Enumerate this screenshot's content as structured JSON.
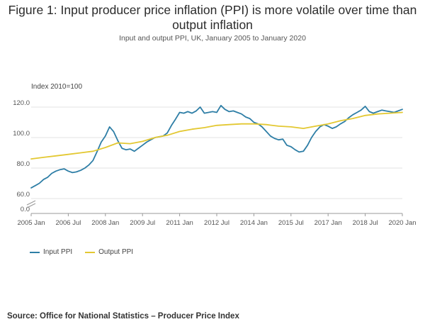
{
  "header": {
    "title": "Figure 1: Input producer price inflation (PPI) is more volatile over time than output inflation",
    "subtitle": "Input and output PPI, UK, January 2005 to January 2020"
  },
  "source": "Source: Office for National Statistics – Producer Price Index",
  "colors": {
    "input": "#2e7ea6",
    "output": "#e3c832",
    "grid": "#e3e3e3",
    "axis": "#999999"
  },
  "chart_data": {
    "type": "line",
    "title": "Figure 1: Input producer price inflation (PPI) is more volatile over time than output inflation",
    "subtitle": "Input and output PPI, UK, January 2005 to January 2020",
    "ylabel": "Index 2010=100",
    "xlabel": "",
    "xlim": [
      2005.0,
      2020.0
    ],
    "ylim": [
      0,
      130
    ],
    "axis_break": true,
    "yticks": [
      0,
      60,
      80,
      100,
      120
    ],
    "ytick_labels": [
      "0.0",
      "60.0",
      "80.0",
      "100.0",
      "120.0"
    ],
    "xticks": [
      2005.0,
      2006.5,
      2008.0,
      2009.5,
      2011.0,
      2012.5,
      2014.0,
      2015.5,
      2017.0,
      2018.5,
      2020.0
    ],
    "xtick_labels": [
      "2005 Jan",
      "2006 Jul",
      "2008 Jan",
      "2009 Jul",
      "2011 Jan",
      "2012 Jul",
      "2014 Jan",
      "2015 Jul",
      "2017 Jan",
      "2018 Jul",
      "2020 Jan"
    ],
    "grid": true,
    "legend_position": "bottom-left",
    "series": [
      {
        "name": "Input PPI",
        "color": "#2e7ea6",
        "x": [
          2005.0,
          2005.17,
          2005.33,
          2005.5,
          2005.67,
          2005.83,
          2006.0,
          2006.17,
          2006.33,
          2006.5,
          2006.67,
          2006.83,
          2007.0,
          2007.17,
          2007.33,
          2007.5,
          2007.67,
          2007.83,
          2008.0,
          2008.17,
          2008.33,
          2008.5,
          2008.67,
          2008.83,
          2009.0,
          2009.17,
          2009.33,
          2009.5,
          2009.67,
          2009.83,
          2010.0,
          2010.17,
          2010.33,
          2010.5,
          2010.67,
          2010.83,
          2011.0,
          2011.17,
          2011.33,
          2011.5,
          2011.67,
          2011.83,
          2012.0,
          2012.17,
          2012.33,
          2012.5,
          2012.67,
          2012.83,
          2013.0,
          2013.17,
          2013.33,
          2013.5,
          2013.67,
          2013.83,
          2014.0,
          2014.17,
          2014.33,
          2014.5,
          2014.67,
          2014.83,
          2015.0,
          2015.17,
          2015.33,
          2015.5,
          2015.67,
          2015.83,
          2016.0,
          2016.17,
          2016.33,
          2016.5,
          2016.67,
          2016.83,
          2017.0,
          2017.17,
          2017.33,
          2017.5,
          2017.67,
          2017.83,
          2018.0,
          2018.17,
          2018.33,
          2018.5,
          2018.67,
          2018.83,
          2019.0,
          2019.17,
          2019.33,
          2019.5,
          2019.67,
          2019.83,
          2020.0
        ],
        "values": [
          67.0,
          68.5,
          70.0,
          72.5,
          74.0,
          76.5,
          78.0,
          79.0,
          79.5,
          78.0,
          77.0,
          77.5,
          78.5,
          80.0,
          82.0,
          85.0,
          91.0,
          97.0,
          101.0,
          107.0,
          104.0,
          98.0,
          93.0,
          92.0,
          92.5,
          91.0,
          93.0,
          95.0,
          97.0,
          98.5,
          100.0,
          100.5,
          101.0,
          103.0,
          108.0,
          112.0,
          116.5,
          116.0,
          117.0,
          116.0,
          117.5,
          120.0,
          116.0,
          116.5,
          117.0,
          116.5,
          121.0,
          118.5,
          117.0,
          117.5,
          116.5,
          115.5,
          113.5,
          112.5,
          110.0,
          109.0,
          107.0,
          104.0,
          101.0,
          99.5,
          98.5,
          99.0,
          95.0,
          94.0,
          92.0,
          90.5,
          91.0,
          95.0,
          100.0,
          104.0,
          107.0,
          108.5,
          107.5,
          106.0,
          107.0,
          109.0,
          110.5,
          113.0,
          115.0,
          116.5,
          118.0,
          120.5,
          117.0,
          116.0,
          117.0,
          118.0,
          117.5,
          117.0,
          116.5,
          117.5,
          118.5
        ]
      },
      {
        "name": "Output PPI",
        "color": "#e3c832",
        "x": [
          2005.0,
          2005.5,
          2006.0,
          2006.5,
          2007.0,
          2007.5,
          2008.0,
          2008.5,
          2009.0,
          2009.5,
          2010.0,
          2010.5,
          2011.0,
          2011.5,
          2012.0,
          2012.5,
          2013.0,
          2013.5,
          2014.0,
          2014.5,
          2015.0,
          2015.5,
          2016.0,
          2016.5,
          2017.0,
          2017.5,
          2018.0,
          2018.5,
          2019.0,
          2019.5,
          2020.0
        ],
        "values": [
          86.0,
          87.0,
          88.0,
          89.0,
          90.0,
          91.0,
          93.5,
          96.5,
          96.0,
          97.5,
          100.0,
          101.5,
          104.0,
          105.5,
          106.5,
          108.0,
          108.5,
          109.0,
          109.0,
          108.5,
          107.5,
          107.0,
          106.0,
          107.5,
          109.0,
          111.0,
          112.5,
          114.5,
          115.5,
          116.0,
          116.5
        ]
      }
    ]
  }
}
